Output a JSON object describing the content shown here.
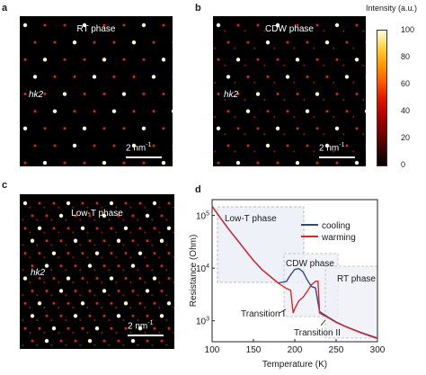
{
  "panels": {
    "a": {
      "letter": "a",
      "phase": "RT phase",
      "hk": "hk2",
      "scale_num": "2 nm",
      "scale_sup": "-1"
    },
    "b": {
      "letter": "b",
      "phase": "CDW phase",
      "hk": "hk2",
      "scale_num": "2 nm",
      "scale_sup": "-1"
    },
    "c": {
      "letter": "c",
      "phase": "Low-T phase",
      "hk": "hk2",
      "scale_num": "2 nm",
      "scale_sup": "-1"
    },
    "d": {
      "letter": "d"
    }
  },
  "colorbar": {
    "title": "Intensity (a.u.)",
    "ticks": [
      "100",
      "80",
      "60",
      "40",
      "20",
      "0"
    ]
  },
  "chart_data": {
    "type": "line",
    "xlabel": "Temperature (K)",
    "ylabel": "Resistance (Ohm)",
    "xlim": [
      100,
      300
    ],
    "ylim": [
      400,
      200000
    ],
    "yscale": "log",
    "xticks": [
      "100",
      "150",
      "200",
      "250",
      "300"
    ],
    "yticks": [
      "10^3",
      "10^4",
      "10^5"
    ],
    "legend_position": "top-right",
    "series": [
      {
        "name": "cooling",
        "color": "#2b4a8c",
        "x": [
          100,
          110,
          120,
          130,
          140,
          150,
          160,
          170,
          180,
          190,
          195,
          200,
          205,
          210,
          215,
          220,
          225,
          230,
          240,
          250,
          260,
          270,
          280,
          290,
          300
        ],
        "y": [
          150000,
          90000,
          55000,
          35000,
          22000,
          14000,
          9500,
          7000,
          5200,
          5600,
          7500,
          9500,
          9800,
          8500,
          6000,
          4500,
          4200,
          1500,
          1180,
          950,
          800,
          690,
          600,
          530,
          470
        ]
      },
      {
        "name": "warming",
        "color": "#d9262c",
        "x": [
          100,
          110,
          120,
          130,
          140,
          150,
          160,
          170,
          180,
          190,
          195,
          198,
          200,
          205,
          210,
          215,
          220,
          225,
          228,
          230,
          240,
          250,
          260,
          270,
          280,
          290,
          300
        ],
        "y": [
          150000,
          90000,
          55000,
          35000,
          22000,
          14000,
          9500,
          7000,
          5200,
          4100,
          3800,
          1400,
          1700,
          2400,
          2800,
          3600,
          4800,
          5600,
          5700,
          1400,
          1150,
          930,
          790,
          680,
          590,
          520,
          460
        ]
      }
    ],
    "annotations": [
      "Low-T phase",
      "CDW phase",
      "RT phase",
      "Transition I",
      "Transition II"
    ]
  }
}
